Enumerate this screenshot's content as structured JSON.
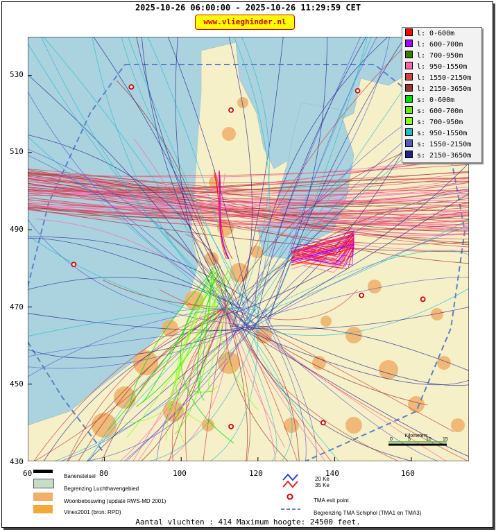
{
  "header": {
    "title": "2025-10-26 06:00:00 - 2025-10-26 11:29:59 CET",
    "site": "www.vlieghinder.nl"
  },
  "axes": {
    "x_ticks": [
      "60",
      "80",
      "100",
      "120",
      "140",
      "160"
    ],
    "y_ticks": [
      "530",
      "510",
      "490",
      "470",
      "450",
      "430"
    ]
  },
  "legend": [
    {
      "label": "l: 0-600m",
      "color": "#ff0000"
    },
    {
      "label": "l: 600-700m",
      "color": "#a000ff"
    },
    {
      "label": "l: 700-950m",
      "color": "#3a7a00"
    },
    {
      "label": "l: 950-1550m",
      "color": "#ff66aa"
    },
    {
      "label": "l: 1550-2150m",
      "color": "#cc4444"
    },
    {
      "label": "l: 2150-3650m",
      "color": "#993333"
    },
    {
      "label": "s: 0-600m",
      "color": "#00dd00"
    },
    {
      "label": "s: 600-700m",
      "color": "#66ee00"
    },
    {
      "label": "s: 700-950m",
      "color": "#88ff22"
    },
    {
      "label": "s: 950-1550m",
      "color": "#22bbcc"
    },
    {
      "label": "s: 1550-2150m",
      "color": "#5555cc"
    },
    {
      "label": "s: 2150-3650m",
      "color": "#222288"
    }
  ],
  "map_legend": {
    "banenstelsel": "Banenstelsel",
    "luchthaven": "Begrenzing Luchthavengebied",
    "woonbebouwing": "Woonbebouwing (update RWS-MD 2001)",
    "vinex": "Vinex2001 (bron: RPD)",
    "ke20": "20 Ke",
    "ke35": "35 Ke",
    "tma_exit": "TMA exit point",
    "tma_begrenzing": "Begrenzing TMA Schiphol  (TMA1 en TMA3)",
    "scale_title": "Kilometers",
    "scale_ticks": [
      "0",
      "5",
      "10",
      "15"
    ]
  },
  "footer": "Aantal vluchten : 414 Maximum hoogte: 24500 feet.",
  "chart_data": {
    "type": "scatter",
    "title": "2025-10-26 06:00:00 - 2025-10-26 11:29:59 CET",
    "xlim": [
      60,
      175
    ],
    "ylim": [
      430,
      540
    ],
    "x_ticks": [
      60,
      80,
      100,
      120,
      140,
      160
    ],
    "y_ticks": [
      430,
      450,
      470,
      490,
      510,
      530
    ],
    "tma_exit_points": [
      [
        87,
        527
      ],
      [
        113,
        521
      ],
      [
        146,
        526
      ],
      [
        72,
        481
      ],
      [
        147,
        473
      ],
      [
        163,
        472
      ],
      [
        113,
        439
      ],
      [
        137,
        440
      ]
    ]
  }
}
